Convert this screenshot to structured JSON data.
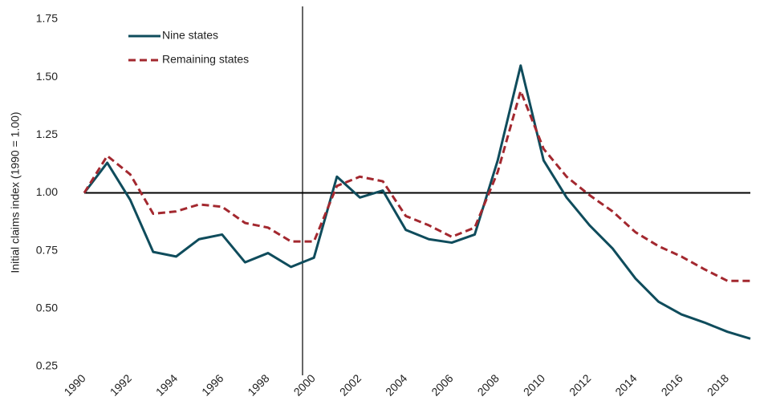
{
  "chart_data": {
    "type": "line",
    "y_label": "Initial claims index (1990 = 1.00)",
    "categories": [
      "1990",
      null,
      "1992",
      null,
      "1994",
      null,
      "1996",
      null,
      "1998",
      null,
      "2000",
      null,
      "2002",
      null,
      "2004",
      null,
      "2006",
      null,
      "2008",
      null,
      "2010",
      null,
      "2012",
      null,
      "2014",
      null,
      "2016",
      null,
      "2018",
      null
    ],
    "series": [
      {
        "name": "Nine states",
        "color": "#0f4c5c",
        "dash": "solid",
        "values": [
          1.0,
          1.13,
          0.97,
          0.745,
          0.725,
          0.8,
          0.82,
          0.7,
          0.74,
          0.68,
          0.72,
          1.07,
          0.98,
          1.01,
          0.84,
          0.8,
          0.785,
          0.82,
          1.14,
          1.55,
          1.14,
          0.98,
          0.86,
          0.76,
          0.63,
          0.53,
          0.475,
          0.44,
          0.4,
          0.37
        ]
      },
      {
        "name": "Remaining states",
        "color": "#a3282f",
        "dash": "dashed",
        "values": [
          1.0,
          1.16,
          1.08,
          0.91,
          0.92,
          0.95,
          0.94,
          0.87,
          0.85,
          0.79,
          0.79,
          1.03,
          1.07,
          1.05,
          0.9,
          0.86,
          0.81,
          0.85,
          1.09,
          1.44,
          1.19,
          1.07,
          0.99,
          0.92,
          0.83,
          0.77,
          0.725,
          0.67,
          0.62,
          0.62
        ]
      }
    ],
    "ylim": [
      0.25,
      1.75
    ],
    "yticks": [
      0.25,
      {
        "value": 0.5,
        "label": "0.50"
      },
      0.75,
      {
        "value": 1.0,
        "label": "1.00"
      },
      1.25,
      {
        "value": 1.5,
        "label": "1.50"
      },
      1.75
    ],
    "reference_line": 1,
    "legend": "upper-left"
  }
}
